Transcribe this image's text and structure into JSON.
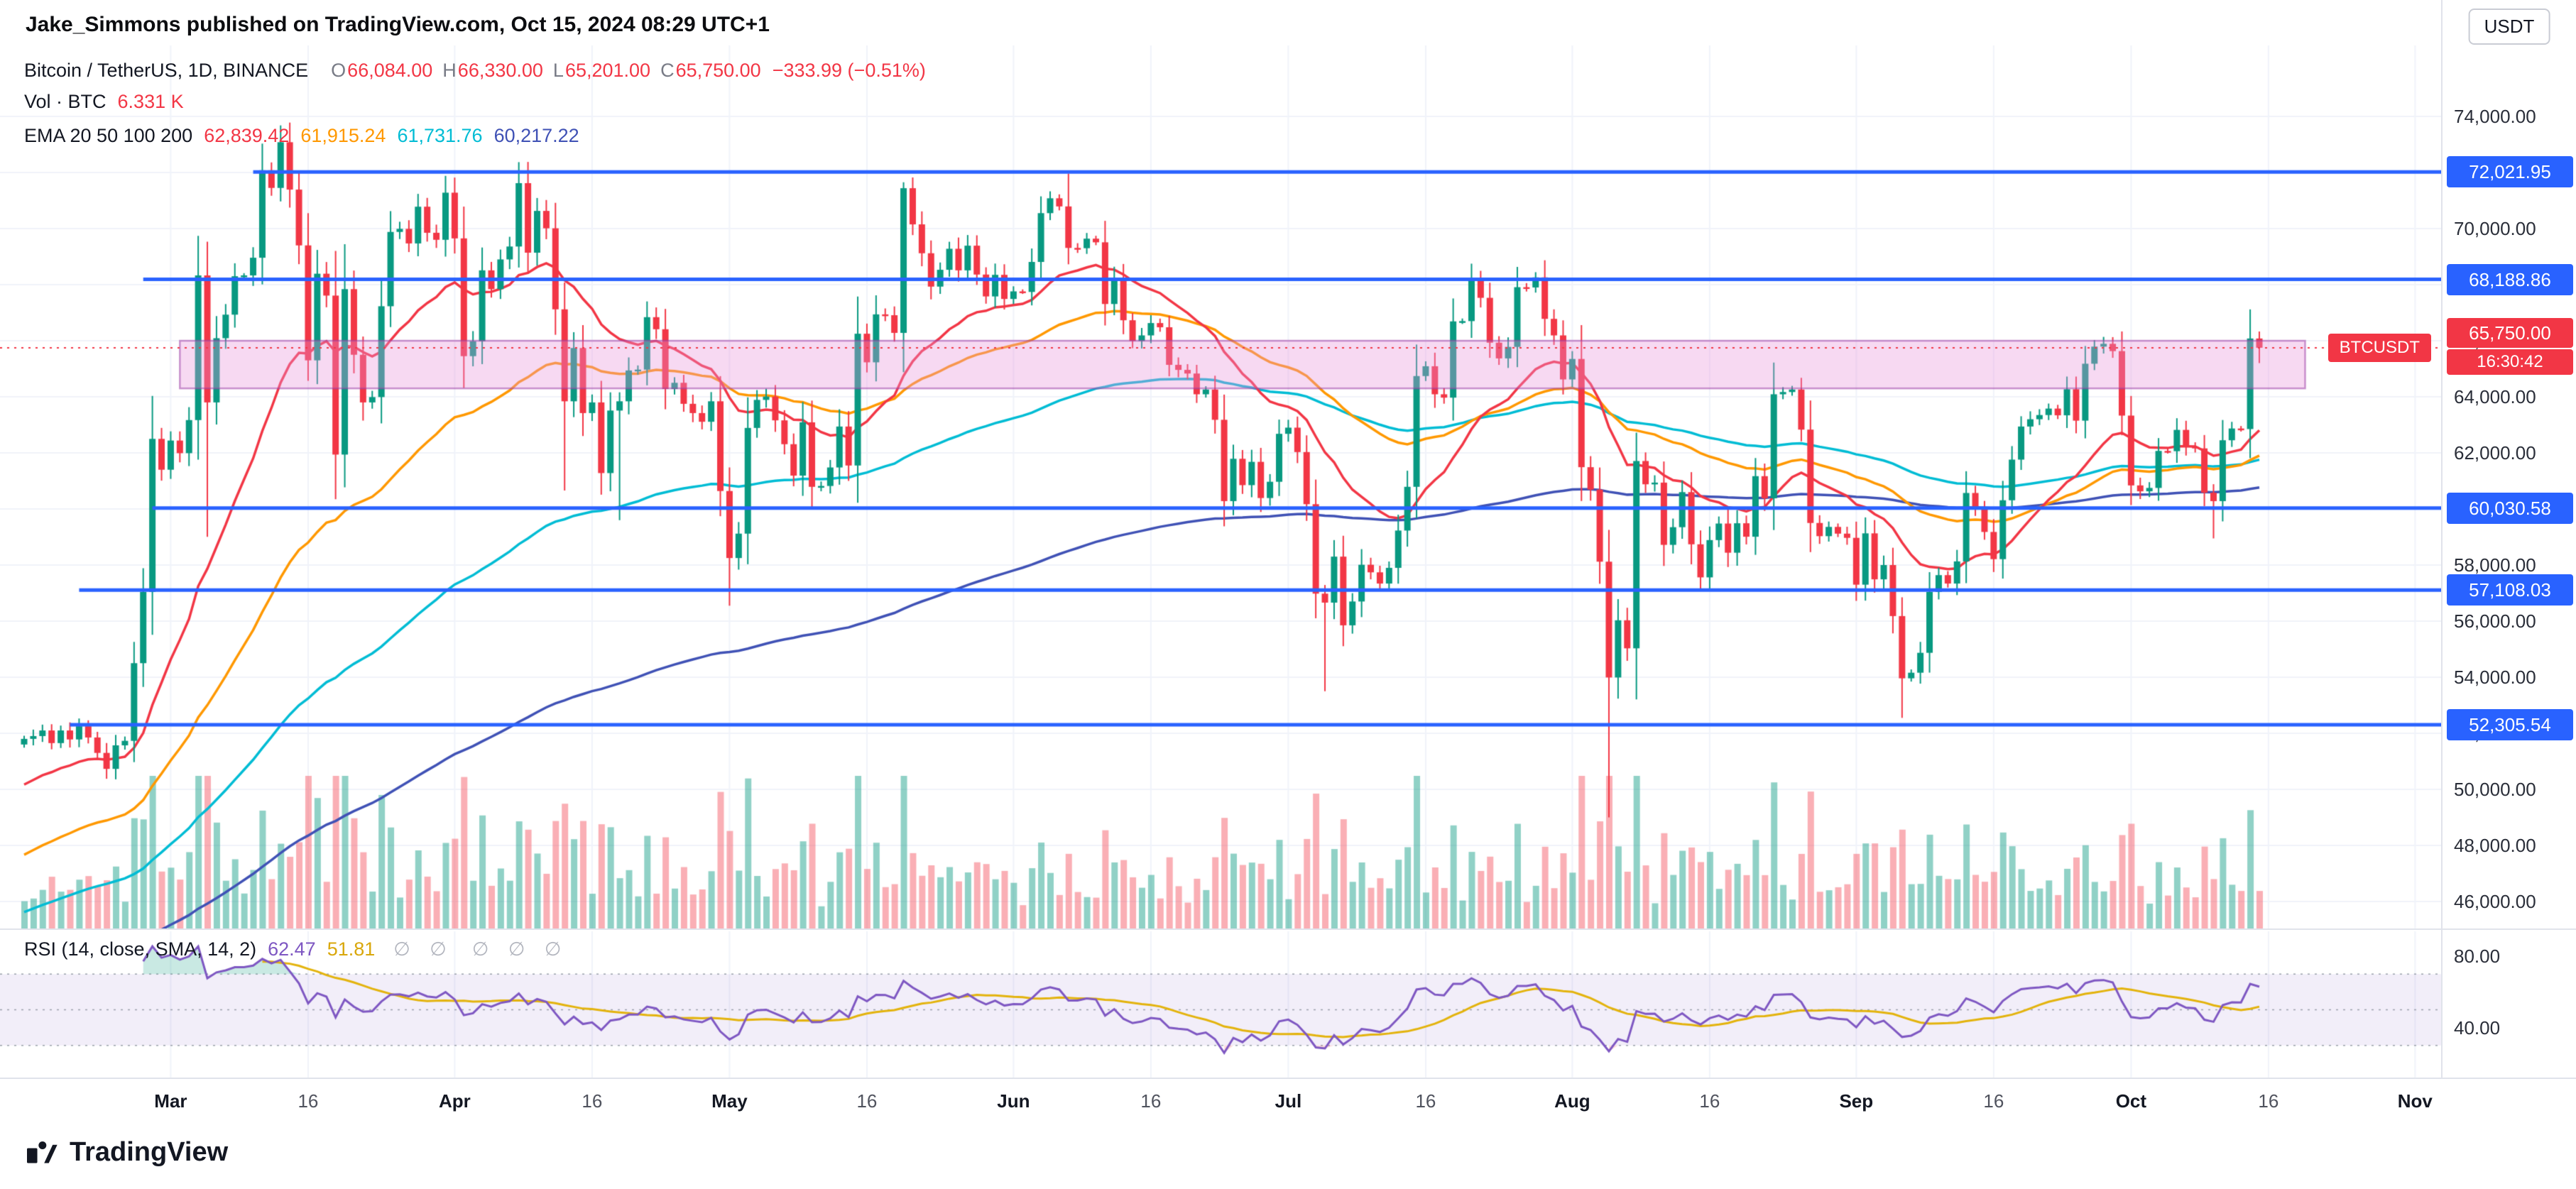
{
  "attribution": "Jake_Simmons published on TradingView.com, Oct 15, 2024 08:29 UTC+1",
  "legend": {
    "symbol": "Bitcoin / TetherUS, 1D, BINANCE",
    "ohlc": {
      "o_label": "O",
      "o": "66,084.00",
      "h_label": "H",
      "h": "66,330.00",
      "l_label": "L",
      "l": "65,201.00",
      "c_label": "C",
      "c": "65,750.00",
      "change": "−333.99 (−0.51%)"
    },
    "volume": {
      "label": "Vol · BTC",
      "value": "6.331 K"
    },
    "ema": {
      "label": "EMA 20 50 100 200",
      "values": [
        "62,839.42",
        "61,915.24",
        "61,731.76",
        "60,217.22"
      ]
    }
  },
  "rsi_legend": {
    "label": "RSI (14, close, SMA, 14, 2)",
    "rsi_value": "62.47",
    "ma_value": "51.81",
    "muted1": "∅ ∅",
    "muted2": "∅ ∅ ∅"
  },
  "price_scale": {
    "currency": "USDT",
    "ticks": [
      "74,000.00",
      "72,000.00",
      "70,000.00",
      "68,000.00",
      "66,000.00",
      "64,000.00",
      "62,000.00",
      "60,000.00",
      "58,000.00",
      "56,000.00",
      "54,000.00",
      "52,000.00",
      "50,000.00",
      "48,000.00",
      "46,000.00"
    ],
    "tick_values": [
      74000,
      72000,
      70000,
      68000,
      66000,
      64000,
      62000,
      60000,
      58000,
      56000,
      54000,
      52000,
      50000,
      48000,
      46000
    ]
  },
  "time_axis": {
    "ticks": [
      {
        "label": "Mar",
        "index": 16,
        "major": true
      },
      {
        "label": "16",
        "index": 31,
        "major": false
      },
      {
        "label": "Apr",
        "index": 47,
        "major": true
      },
      {
        "label": "16",
        "index": 62,
        "major": false
      },
      {
        "label": "May",
        "index": 77,
        "major": true
      },
      {
        "label": "16",
        "index": 92,
        "major": false
      },
      {
        "label": "Jun",
        "index": 108,
        "major": true
      },
      {
        "label": "16",
        "index": 123,
        "major": false
      },
      {
        "label": "Jul",
        "index": 138,
        "major": true
      },
      {
        "label": "16",
        "index": 153,
        "major": false
      },
      {
        "label": "Aug",
        "index": 169,
        "major": true
      },
      {
        "label": "16",
        "index": 184,
        "major": false
      },
      {
        "label": "Sep",
        "index": 200,
        "major": true
      },
      {
        "label": "16",
        "index": 215,
        "major": false
      },
      {
        "label": "Oct",
        "index": 230,
        "major": true
      },
      {
        "label": "16",
        "index": 245,
        "major": false
      },
      {
        "label": "Nov",
        "index": 261,
        "major": true
      }
    ]
  },
  "footer": {
    "brand": "TradingView"
  },
  "chart_data": {
    "type": "candlestick",
    "symbol": "BTCUSDT",
    "exchange": "BINANCE",
    "interval": "1D",
    "title": "Bitcoin / TetherUS, 1D, BINANCE",
    "ylim": [
      46000,
      74000
    ],
    "x_range": [
      "2024-02-14",
      "2024-11-01"
    ],
    "grid": true,
    "last_candle": {
      "date": "2024-10-15",
      "open": 66084,
      "high": 66330,
      "low": 65201,
      "close": 65750,
      "change": -333.99,
      "change_pct": -0.51
    },
    "candles": {
      "start_date": "2024-02-14",
      "first_open": 51600,
      "closes": [
        51800,
        51900,
        52100,
        51650,
        52100,
        51780,
        52250,
        51850,
        51300,
        50730,
        51570,
        51730,
        54500,
        57040,
        62500,
        61400,
        62440,
        61990,
        63170,
        68330,
        63800,
        66090,
        66930,
        68300,
        68330,
        68960,
        72080,
        71450,
        73080,
        71390,
        69400,
        65300,
        68390,
        67610,
        61940,
        67840,
        65500,
        63800,
        63990,
        67230,
        69880,
        69990,
        69470,
        70780,
        69850,
        69600,
        71280,
        69650,
        65450,
        65980,
        68510,
        67840,
        68900,
        69360,
        71620,
        69140,
        70630,
        70010,
        67120,
        63840,
        65740,
        63420,
        63800,
        61280,
        63510,
        63840,
        64940,
        64970,
        66840,
        66410,
        64280,
        64500,
        63750,
        63420,
        63110,
        63840,
        60640,
        58250,
        59120,
        62890,
        63890,
        64010,
        63160,
        62310,
        61190,
        63090,
        60790,
        60820,
        61480,
        62940,
        61550,
        66250,
        65230,
        66940,
        66910,
        66280,
        71440,
        70150,
        69120,
        67930,
        68530,
        69280,
        68510,
        69390,
        68360,
        67580,
        68350,
        67490,
        67760,
        67740,
        68810,
        70550,
        71080,
        70790,
        69310,
        69300,
        69640,
        69510,
        67310,
        68240,
        66730,
        65990,
        66190,
        66630,
        66480,
        65140,
        64960,
        64830,
        64090,
        64260,
        63180,
        60280,
        61790,
        60850,
        61680,
        60390,
        60970,
        62680,
        62900,
        62030,
        60170,
        56980,
        56660,
        58300,
        55850,
        56700,
        58010,
        57740,
        57340,
        57900,
        59230,
        60790,
        64740,
        65090,
        64090,
        63970,
        66690,
        66700,
        68150,
        67530,
        65930,
        65370,
        65780,
        67910,
        67900,
        68260,
        66780,
        66190,
        64620,
        65350,
        61490,
        60690,
        58120,
        53990,
        56030,
        55030,
        61710,
        60880,
        60940,
        58720,
        59350,
        60600,
        58740,
        57560,
        58890,
        59480,
        58440,
        59490,
        59010,
        61170,
        60380,
        64090,
        64170,
        64260,
        62830,
        59500,
        59030,
        59360,
        59120,
        58970,
        57300,
        59130,
        57490,
        58000,
        56180,
        53960,
        54160,
        54870,
        57040,
        57640,
        57340,
        58130,
        60570,
        60010,
        59180,
        58210,
        60310,
        61760,
        62940,
        63200,
        63350,
        63580,
        63340,
        64270,
        63150,
        65180,
        65790,
        65890,
        65630,
        63330,
        60840,
        60630,
        60750,
        62070,
        62060,
        62820,
        62230,
        62160,
        60580,
        60280,
        62450,
        62870,
        62850,
        66080,
        65750
      ],
      "wick_overrides": {
        "20": {
          "low": 59005
        },
        "28": {
          "high": 73680
        },
        "29": {
          "high": 73780
        },
        "31": {
          "low": 64570
        },
        "35": {
          "low": 60770
        },
        "59": {
          "low": 60660
        },
        "65": {
          "low": 59600
        },
        "77": {
          "low": 56550
        },
        "96": {
          "high": 71650
        },
        "114": {
          "high": 71960
        },
        "142": {
          "low": 53500
        },
        "173": {
          "low": 49000
        },
        "176": {
          "high": 62720
        },
        "205": {
          "low": 52550
        },
        "239": {
          "low": 58950
        },
        "244": {
          "high": 66330,
          "low": 65201
        }
      }
    },
    "indicators": {
      "ema_periods": [
        20,
        50,
        100,
        200
      ],
      "ema_current": [
        62839.42,
        61915.24,
        61731.76,
        60217.22
      ],
      "rsi_period": 14,
      "rsi_current": 62.47,
      "rsi_ma_current": 51.81,
      "volume_current": "6.331 K"
    },
    "levels": [
      {
        "price": 72021.95,
        "label": "72,021.95",
        "start_index": 25
      },
      {
        "price": 68188.86,
        "label": "68,188.86",
        "start_index": 13
      },
      {
        "price": 60030.58,
        "label": "60,030.58",
        "start_index": 14
      },
      {
        "price": 57108.03,
        "label": "57,108.03",
        "start_index": 6
      },
      {
        "price": 52305.54,
        "label": "52,305.54",
        "start_index": 5
      }
    ],
    "zone": {
      "price_top": 66000,
      "price_bottom": 64300,
      "start_index": 17,
      "end_index": 249
    },
    "last_price": {
      "price": 65750,
      "label": "65,750.00",
      "countdown": "16:30:42",
      "badge": "BTCUSDT"
    },
    "rsi_ticks": [
      {
        "label": "80.00",
        "value": 80
      },
      {
        "label": "40.00",
        "value": 40
      }
    ],
    "colors": {
      "up": "#089981",
      "down": "#f23645",
      "vol_up": "rgba(8,153,129,0.45)",
      "vol_down": "rgba(242,54,69,0.40)",
      "ema20": "#f23645",
      "ema50": "#ff9800",
      "ema100": "#00bcd4",
      "ema200": "#3f51b5",
      "level": "#2962ff",
      "last": "#f23645",
      "zone_fill": "rgba(231,145,219,0.35)",
      "zone_border": "rgba(158,66,168,0.55)",
      "rsi": "#7e57c2",
      "rsi_ma": "#e3b30c",
      "rsi_band": "rgba(126,87,194,0.10)",
      "grid": "#f0f3fa"
    }
  }
}
